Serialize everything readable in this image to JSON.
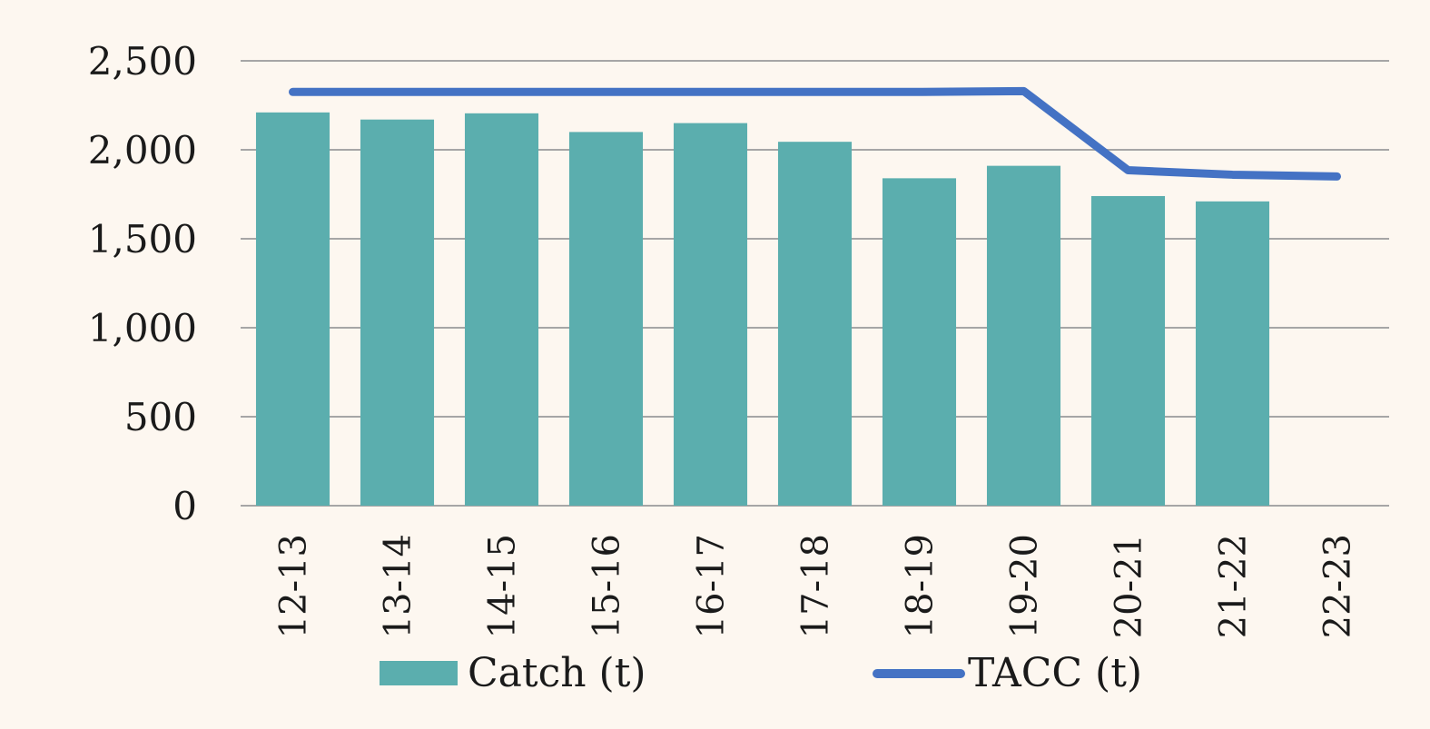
{
  "chart_data": {
    "type": "bar",
    "categories": [
      "12-13",
      "13-14",
      "14-15",
      "15-16",
      "16-17",
      "17-18",
      "18-19",
      "19-20",
      "20-21",
      "21-22",
      "22-23"
    ],
    "series": [
      {
        "name": "Catch (t)",
        "type": "bar",
        "color": "#5baeae",
        "values": [
          2210,
          2170,
          2205,
          2100,
          2150,
          2045,
          1840,
          1910,
          1740,
          1710,
          null
        ]
      },
      {
        "name": "TACC (t)",
        "type": "line",
        "color": "#4472c4",
        "values": [
          2325,
          2325,
          2325,
          2325,
          2325,
          2325,
          2325,
          2330,
          1885,
          1860,
          1850
        ]
      }
    ],
    "ylim": [
      0,
      2500
    ],
    "yticks": [
      0,
      500,
      1000,
      1500,
      2000,
      2500
    ],
    "ytick_labels": [
      "0",
      "500",
      "1,000",
      "1,500",
      "2,000",
      "2,500"
    ],
    "title": "",
    "xlabel": "",
    "ylabel": "",
    "grid": true,
    "legend": "bottom",
    "background": "#fdf7f0",
    "grid_color": "#a6a6a6"
  }
}
